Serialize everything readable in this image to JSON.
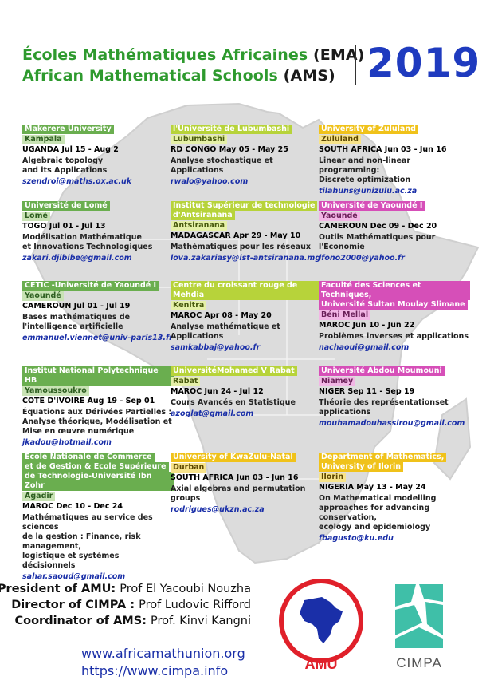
{
  "header": {
    "title_fr": "Écoles Mathématiques Africaines",
    "title_fr_abbr": "(EMA)",
    "title_en": "African Mathematical Schools",
    "title_en_abbr": "(AMS)",
    "year": "2019"
  },
  "colors": {
    "green": "#6aae4f",
    "lime": "#b7d33a",
    "yellow": "#f0c21a",
    "pink": "#d64fb8",
    "blue": "#1f3bbf"
  },
  "schools": [
    {
      "inst": [
        "Makerere University"
      ],
      "city": "Kampala",
      "country_dates": "UGANDA  Jul 15 - Aug 2",
      "topic": [
        "Algebraic topology",
        "and its Applications"
      ],
      "email": "szendroi@maths.ox.ac.uk",
      "color": "green"
    },
    {
      "inst": [
        "l'Université de Lubumbashi"
      ],
      "city": "Lubumbashi",
      "country_dates": "RD CONGO  May 05 - May 25",
      "topic": [
        "Analyse stochastique et Applications"
      ],
      "email": "rwalo@yahoo.com",
      "color": "lime"
    },
    {
      "inst": [
        "University of Zululand"
      ],
      "city": "Zululand",
      "country_dates": "SOUTH AFRICA  Jun 03 - Jun 16",
      "topic": [
        "Linear and non-linear programming:",
        "Discrete optimization"
      ],
      "email": "tilahuns@unizulu.ac.za",
      "color": "yellow"
    },
    {
      "inst": [
        "Université de Lomé"
      ],
      "city": "Lomé",
      "country_dates": "TOGO  Jul 01 - Jul 13",
      "topic": [
        "Modélisation Mathématique",
        "et Innovations Technologiques"
      ],
      "email": "zakari.djibibe@gmail.com",
      "color": "green"
    },
    {
      "inst": [
        "Institut Supérieur de technologie",
        "d'Antsiranana"
      ],
      "city": "Antsiranana",
      "country_dates": "MADAGASCAR  Apr 29 - May 10",
      "topic": [
        "Mathématiques pour les réseaux"
      ],
      "email": "lova.zakariasy@ist-antsiranana.mg",
      "color": "lime"
    },
    {
      "inst": [
        "Université de Yaoundé I"
      ],
      "city": "Yaoundé",
      "country_dates": "CAMEROUN  Dec 09 - Dec 20",
      "topic": [
        "Outils Mathématiques pour l'Economie"
      ],
      "email": "lfono2000@yahoo.fr",
      "color": "pink"
    },
    {
      "inst": [
        "CETIC -Université de Yaoundé I"
      ],
      "city": "Yaoundé",
      "country_dates": "CAMEROUN  Jul 01 - Jul 19",
      "topic": [
        "Bases mathématiques de",
        "l'intelligence artificielle"
      ],
      "email": "emmanuel.viennet@univ-paris13.fr",
      "color": "green"
    },
    {
      "inst": [
        "Centre du croissant rouge de Mehdia"
      ],
      "city": "Kenitra",
      "country_dates": "MAROC  Apr 08 - May 20",
      "topic": [
        "Analyse mathématique et",
        "Applications"
      ],
      "email": "samkabbaj@yahoo.fr",
      "color": "lime"
    },
    {
      "inst": [
        "Faculté des Sciences et Techniques,",
        "Université Sultan Moulay Slimane"
      ],
      "city": "Béni Mellal",
      "country_dates": "MAROC  Jun 10 - Jun 22",
      "topic": [
        "Problèmes inverses et applications"
      ],
      "email": "nachaoui@gmail.com",
      "color": "pink"
    },
    {
      "inst": [
        "Institut National Polytechnique HB"
      ],
      "city": "Yamoussoukro",
      "country_dates": "COTE D'IVOIRE  Aug 19 - Sep 01",
      "topic": [
        "Équations aux Dérivées Partielles :",
        "Analyse théorique, Modélisation et",
        "Mise en œuvre numérique"
      ],
      "email": "jkadou@hotmail.com",
      "color": "green"
    },
    {
      "inst": [
        "UniversitéMohamed V Rabat"
      ],
      "city": "Rabat",
      "country_dates": "MAROC  Jun 24 - Jul 12",
      "topic": [
        "Cours Avancés en Statistique"
      ],
      "email": "azoglat@gmail.com",
      "color": "lime"
    },
    {
      "inst": [
        "Université Abdou Moumouni"
      ],
      "city": "Niamey",
      "country_dates": "NIGER  Sep 11 - Sep 19",
      "topic": [
        "Théorie des représentationset applications"
      ],
      "email": "mouhamadouhassirou@gmail.com",
      "color": "pink"
    },
    {
      "inst": [
        "Ecole Nationale de Commerce",
        "et de Gestion & Ecole Supérieure",
        "de Technologie-Université Ibn Zohr"
      ],
      "city": "Agadir",
      "country_dates": "MAROC  Dec 10 - Dec 24",
      "topic": [
        "Mathématiques au service des sciences",
        "de la gestion : Finance, risk management,",
        "logistique et systèmes décisionnels"
      ],
      "email": "sahar.saoud@gmail.com",
      "color": "green"
    },
    {
      "inst": [
        "University of KwaZulu-Natal"
      ],
      "city": "Durban",
      "country_dates": "SOUTH AFRICA  Jun 03 - Jun 16",
      "topic": [
        "Axial algebras and permutation groups"
      ],
      "email": "rodrigues@ukzn.ac.za",
      "color": "yellow"
    },
    {
      "inst": [
        "Department of Mathematics,",
        "University of Ilorin"
      ],
      "city": "Ilorin",
      "country_dates": "NIGERIA  May 13 - May 24",
      "topic": [
        "On Mathematical modelling",
        "approaches for advancing conservation,",
        "ecology and epidemiology"
      ],
      "email": "fbagusto@ku.edu",
      "color": "yellow"
    }
  ],
  "officials": {
    "president_label": "President of AMU:",
    "president_name": "Prof El Yacoubi Nouzha",
    "director_label": "Director of CIMPA :",
    "director_name": "Prof Ludovic Rifford",
    "coordinator_label": "Coordinator of AMS:",
    "coordinator_name": "Prof. Kinvi Kangni"
  },
  "links": {
    "amu": "www.africamathunion.org",
    "cimpa": "https://www.cimpa.info"
  },
  "logos": {
    "amu_text": "AMU",
    "cimpa_text": "CIMPA",
    "amu_icon": "africa-map-icon",
    "cimpa_icon": "cimpa-mosaic-icon"
  }
}
